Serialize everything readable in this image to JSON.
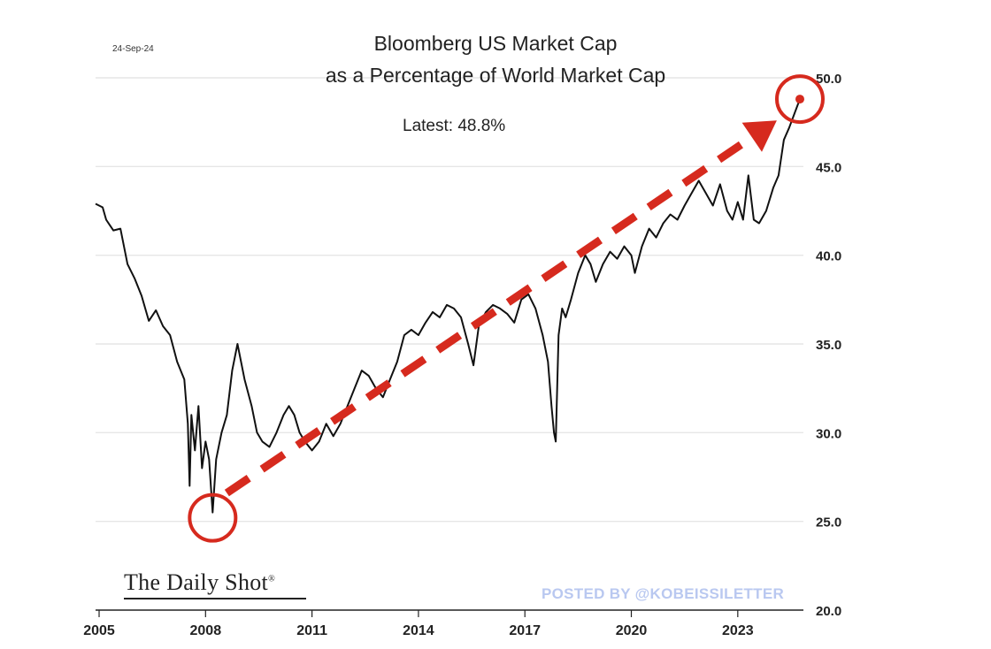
{
  "header": {
    "date_stamp": "24-Sep-24",
    "title_line1": "Bloomberg US Market Cap",
    "title_line2": "as a Percentage of World Market Cap",
    "latest_label": "Latest:",
    "latest_value": "48.8%"
  },
  "footer": {
    "brand": "The Daily Shot",
    "brand_mark": "®",
    "watermark": "POSTED BY @KOBEISSILETTER"
  },
  "colors": {
    "line": "#111111",
    "annotation": "#d62a1e",
    "grid": "#e6e6e6",
    "watermark": "#b9c8f0"
  },
  "chart_data": {
    "type": "line",
    "title": "Bloomberg US Market Cap as a Percentage of World Market Cap",
    "xlim": [
      2004.9,
      2024.85
    ],
    "ylim": [
      20,
      50
    ],
    "y_axis_side": "right",
    "x_ticks": [
      2005,
      2008,
      2011,
      2014,
      2017,
      2020,
      2023
    ],
    "x_tick_labels": [
      "2005",
      "2008",
      "2011",
      "2014",
      "2017",
      "2020",
      "2023"
    ],
    "y_ticks": [
      20,
      25,
      30,
      35,
      40,
      45,
      50
    ],
    "y_tick_labels": [
      "20.0",
      "25.0",
      "30.0",
      "35.0",
      "40.0",
      "45.0",
      "50.0"
    ],
    "grid": "horizontal",
    "series": [
      {
        "points": [
          [
            2004.9,
            42.9
          ],
          [
            2005.1,
            42.7
          ],
          [
            2005.2,
            42.0
          ],
          [
            2005.4,
            41.4
          ],
          [
            2005.6,
            41.5
          ],
          [
            2005.8,
            39.5
          ],
          [
            2006.0,
            38.7
          ],
          [
            2006.2,
            37.7
          ],
          [
            2006.4,
            36.3
          ],
          [
            2006.6,
            36.9
          ],
          [
            2006.8,
            36.0
          ],
          [
            2007.0,
            35.5
          ],
          [
            2007.2,
            34.0
          ],
          [
            2007.4,
            33.0
          ],
          [
            2007.5,
            30.5
          ],
          [
            2007.55,
            27.0
          ],
          [
            2007.6,
            31.0
          ],
          [
            2007.7,
            29.0
          ],
          [
            2007.8,
            31.5
          ],
          [
            2007.9,
            28.0
          ],
          [
            2008.0,
            29.5
          ],
          [
            2008.1,
            28.5
          ],
          [
            2008.15,
            27.0
          ],
          [
            2008.2,
            25.5
          ],
          [
            2008.3,
            28.5
          ],
          [
            2008.45,
            30.0
          ],
          [
            2008.6,
            31.0
          ],
          [
            2008.75,
            33.5
          ],
          [
            2008.9,
            35.0
          ],
          [
            2009.1,
            33.0
          ],
          [
            2009.3,
            31.5
          ],
          [
            2009.45,
            30.0
          ],
          [
            2009.6,
            29.5
          ],
          [
            2009.8,
            29.2
          ],
          [
            2010.0,
            30.0
          ],
          [
            2010.2,
            31.0
          ],
          [
            2010.35,
            31.5
          ],
          [
            2010.5,
            31.0
          ],
          [
            2010.65,
            30.0
          ],
          [
            2010.8,
            29.5
          ],
          [
            2011.0,
            29.0
          ],
          [
            2011.2,
            29.5
          ],
          [
            2011.4,
            30.5
          ],
          [
            2011.6,
            29.8
          ],
          [
            2011.8,
            30.5
          ],
          [
            2012.0,
            31.5
          ],
          [
            2012.2,
            32.5
          ],
          [
            2012.4,
            33.5
          ],
          [
            2012.6,
            33.2
          ],
          [
            2012.8,
            32.5
          ],
          [
            2013.0,
            32.0
          ],
          [
            2013.2,
            33.0
          ],
          [
            2013.4,
            34.0
          ],
          [
            2013.6,
            35.5
          ],
          [
            2013.8,
            35.8
          ],
          [
            2014.0,
            35.5
          ],
          [
            2014.2,
            36.2
          ],
          [
            2014.4,
            36.8
          ],
          [
            2014.6,
            36.5
          ],
          [
            2014.8,
            37.2
          ],
          [
            2015.0,
            37.0
          ],
          [
            2015.2,
            36.5
          ],
          [
            2015.4,
            35.0
          ],
          [
            2015.55,
            33.8
          ],
          [
            2015.7,
            36.0
          ],
          [
            2015.9,
            36.8
          ],
          [
            2016.1,
            37.2
          ],
          [
            2016.3,
            37.0
          ],
          [
            2016.5,
            36.7
          ],
          [
            2016.7,
            36.2
          ],
          [
            2016.9,
            37.5
          ],
          [
            2017.1,
            37.8
          ],
          [
            2017.3,
            37.0
          ],
          [
            2017.5,
            35.5
          ],
          [
            2017.65,
            34.0
          ],
          [
            2017.75,
            31.5
          ],
          [
            2017.82,
            30.0
          ],
          [
            2017.87,
            29.5
          ],
          [
            2017.95,
            35.5
          ],
          [
            2018.05,
            37.0
          ],
          [
            2018.15,
            36.5
          ],
          [
            2018.3,
            37.5
          ],
          [
            2018.5,
            39.0
          ],
          [
            2018.7,
            40.0
          ],
          [
            2018.85,
            39.5
          ],
          [
            2019.0,
            38.5
          ],
          [
            2019.2,
            39.5
          ],
          [
            2019.4,
            40.2
          ],
          [
            2019.6,
            39.8
          ],
          [
            2019.8,
            40.5
          ],
          [
            2020.0,
            40.0
          ],
          [
            2020.1,
            39.0
          ],
          [
            2020.3,
            40.5
          ],
          [
            2020.5,
            41.5
          ],
          [
            2020.7,
            41.0
          ],
          [
            2020.9,
            41.8
          ],
          [
            2021.1,
            42.3
          ],
          [
            2021.3,
            42.0
          ],
          [
            2021.5,
            42.8
          ],
          [
            2021.7,
            43.5
          ],
          [
            2021.9,
            44.2
          ],
          [
            2022.1,
            43.5
          ],
          [
            2022.3,
            42.8
          ],
          [
            2022.5,
            44.0
          ],
          [
            2022.7,
            42.5
          ],
          [
            2022.85,
            42.0
          ],
          [
            2023.0,
            43.0
          ],
          [
            2023.15,
            42.0
          ],
          [
            2023.3,
            44.5
          ],
          [
            2023.45,
            42.0
          ],
          [
            2023.6,
            41.8
          ],
          [
            2023.8,
            42.5
          ],
          [
            2024.0,
            43.8
          ],
          [
            2024.15,
            44.5
          ],
          [
            2024.3,
            46.5
          ],
          [
            2024.45,
            47.2
          ],
          [
            2024.6,
            48.0
          ],
          [
            2024.75,
            48.8
          ]
        ]
      }
    ],
    "annotations": {
      "trend_arrow": {
        "from": [
          2008.6,
          26.6
        ],
        "to": [
          2024.1,
          47.6
        ],
        "style": "dashed red arrow"
      },
      "circles": [
        {
          "center": [
            2008.2,
            25.2
          ]
        },
        {
          "center": [
            2024.75,
            48.8
          ]
        }
      ]
    }
  }
}
